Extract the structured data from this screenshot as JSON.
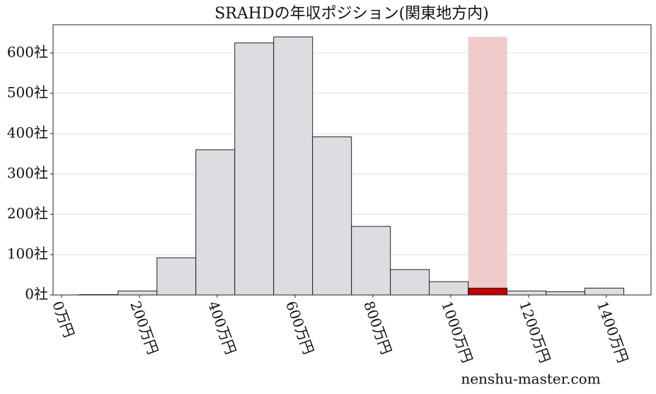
{
  "chart_data": {
    "type": "histogram",
    "title": "SRAHDの年収ポジション(関東地方内)",
    "bins": [
      45,
      145,
      245,
      345,
      445,
      545,
      645,
      745,
      845,
      945,
      1045,
      1145,
      1245,
      1345,
      1445
    ],
    "values": [
      1,
      10,
      92,
      360,
      625,
      640,
      392,
      170,
      63,
      33,
      17,
      10,
      8,
      17
    ],
    "color": "#dcdde0",
    "edge_color": "#222222",
    "highlight": {
      "bins": [
        1045,
        1145
      ],
      "height": 640,
      "color": "#efcbcc",
      "bar_color": "#c00000"
    },
    "xlim": [
      -22,
      1515
    ],
    "ylim": [
      0,
      670
    ],
    "xticks": [
      {
        "value": 0,
        "label": "0万円"
      },
      {
        "value": 200,
        "label": "200万円"
      },
      {
        "value": 400,
        "label": "400万円"
      },
      {
        "value": 600,
        "label": "600万円"
      },
      {
        "value": 800,
        "label": "800万円"
      },
      {
        "value": 1000,
        "label": "1000万円"
      },
      {
        "value": 1200,
        "label": "1200万円"
      },
      {
        "value": 1400,
        "label": "1400万円"
      }
    ],
    "yticks": [
      {
        "value": 0,
        "label": "0社"
      },
      {
        "value": 100,
        "label": "100社"
      },
      {
        "value": 200,
        "label": "200社"
      },
      {
        "value": 300,
        "label": "300社"
      },
      {
        "value": 400,
        "label": "400社"
      },
      {
        "value": 500,
        "label": "500社"
      },
      {
        "value": 600,
        "label": "600社"
      }
    ],
    "grid": true,
    "watermark": "nenshu-master.com"
  }
}
